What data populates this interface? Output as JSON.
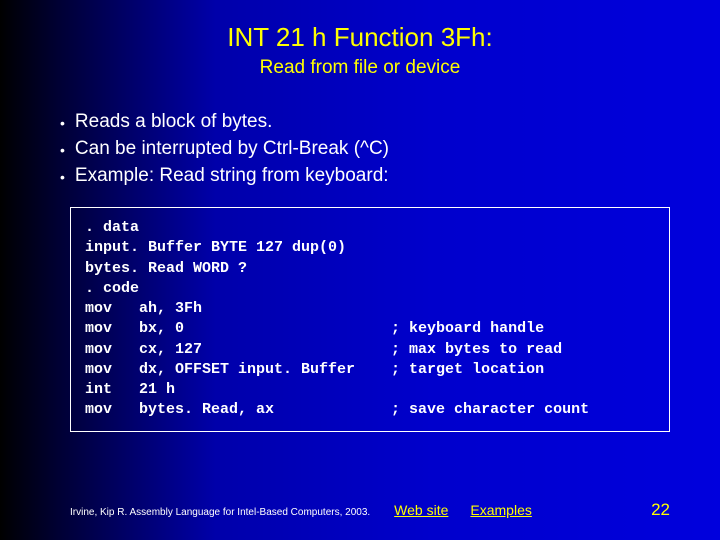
{
  "title": "INT 21 h Function 3Fh:",
  "subtitle": "Read from file or device",
  "bullets": [
    "Reads a block of bytes.",
    "Can be interrupted by Ctrl-Break (^C)",
    "Example: Read string from keyboard:"
  ],
  "code": ". data\ninput. Buffer BYTE 127 dup(0)\nbytes. Read WORD ?\n. code\nmov   ah, 3Fh\nmov   bx, 0                       ; keyboard handle\nmov   cx, 127                     ; max bytes to read\nmov   dx, OFFSET input. Buffer    ; target location\nint   21 h\nmov   bytes. Read, ax             ; save character count",
  "footer": {
    "citation": "Irvine, Kip R. Assembly Language for Intel-Based Computers, 2003.",
    "link1": "Web site",
    "link2": "Examples",
    "page": "22"
  },
  "colors": {
    "accent": "#ffff00",
    "text": "#ffffff",
    "bg_start": "#000000",
    "bg_end": "#0000dd"
  }
}
